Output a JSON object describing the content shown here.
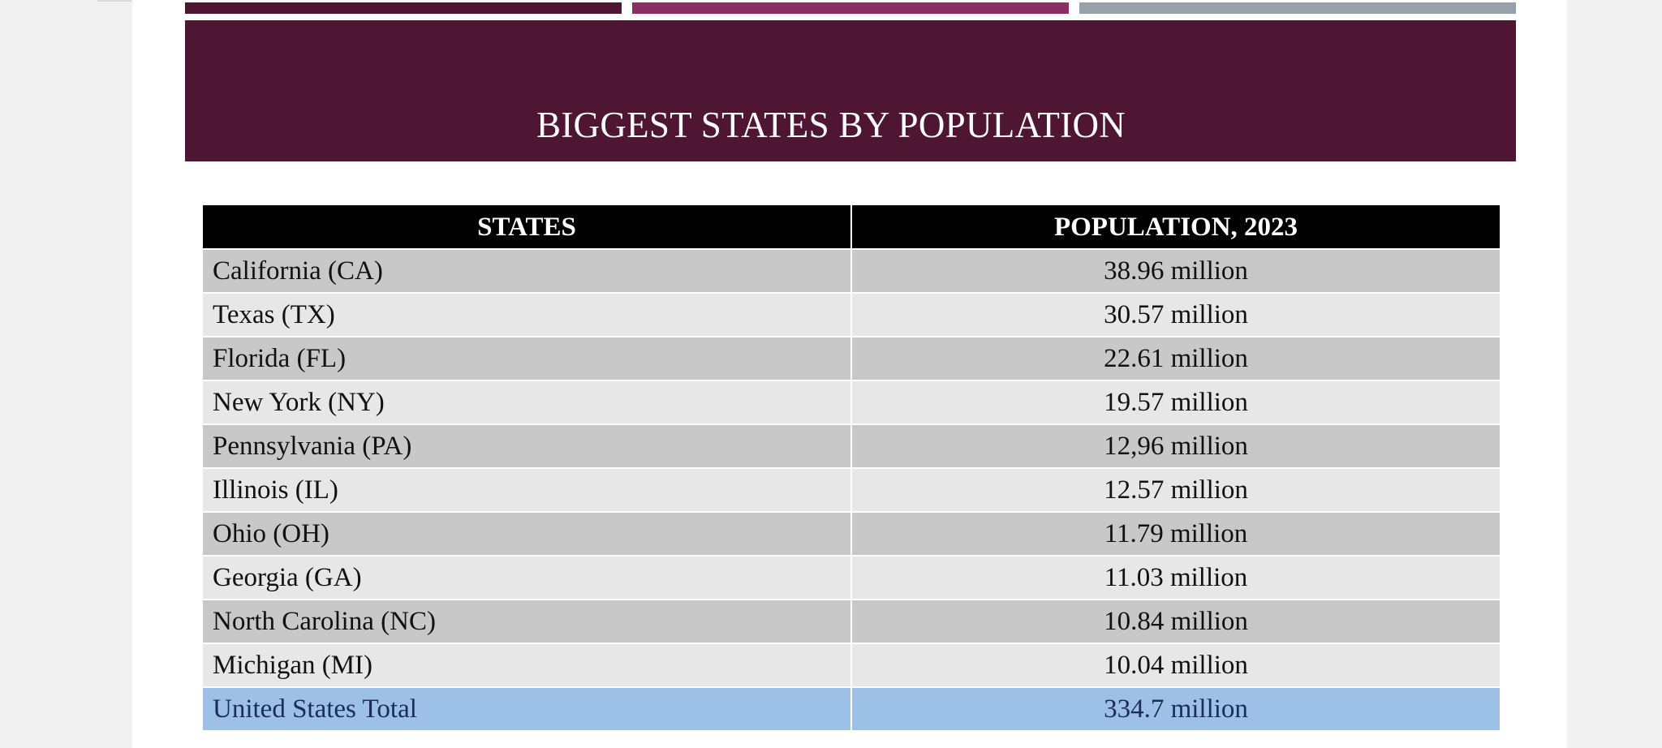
{
  "colors": {
    "page_background": "#f1f1f1",
    "slide_background": "#ffffff",
    "accent_bar_1": "#4e1633",
    "accent_bar_2": "#8b2f62",
    "accent_bar_3": "#98a0aa",
    "title_band": "#4e1633",
    "header_row": "#000000",
    "row_dark": "#c8c8c8",
    "row_light": "#e7e7e7",
    "total_row": "#9cc0e6",
    "total_text": "#1b2c5a"
  },
  "slide": {
    "title": "BIGGEST STATES BY POPULATION"
  },
  "table": {
    "headers": {
      "states": "STATES",
      "population": "POPULATION, 2023"
    },
    "rows": [
      {
        "state": "California (CA)",
        "population": "38.96 million"
      },
      {
        "state": "Texas (TX)",
        "population": "30.57 million"
      },
      {
        "state": "Florida (FL)",
        "population": "22.61 million"
      },
      {
        "state": "New York (NY)",
        "population": "19.57 million"
      },
      {
        "state": "Pennsylvania (PA)",
        "population": "12,96 million"
      },
      {
        "state": "Illinois (IL)",
        "population": "12.57 million"
      },
      {
        "state": "Ohio (OH)",
        "population": "11.79 million"
      },
      {
        "state": "Georgia (GA)",
        "population": "11.03 million"
      },
      {
        "state": "North Carolina (NC)",
        "population": "10.84 million"
      },
      {
        "state": "Michigan (MI)",
        "population": "10.04 million"
      }
    ],
    "total": {
      "state": "United States Total",
      "population": "334.7 million"
    }
  }
}
